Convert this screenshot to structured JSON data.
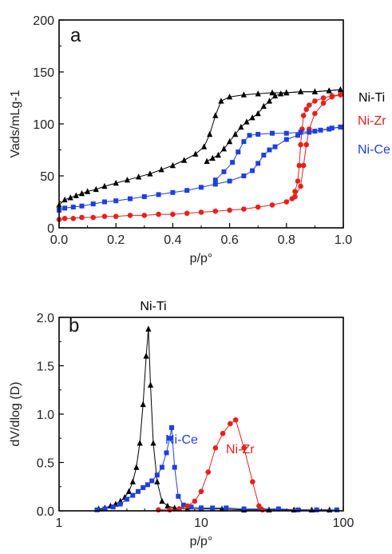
{
  "chart_data": [
    {
      "panel": "a",
      "type": "line",
      "xlabel": "p/p°",
      "ylabel": "Vads/mLg-1",
      "xlim": [
        0,
        1.0
      ],
      "ylim": [
        0,
        200
      ],
      "x_ticks": [
        "0.0",
        "0.2",
        "0.4",
        "0.6",
        "0.8",
        "1.0"
      ],
      "y_ticks": [
        "0",
        "50",
        "100",
        "150",
        "200"
      ],
      "series": [
        {
          "name": "Ni-Ti",
          "color": "#000000",
          "marker": "triangle",
          "adsorption": [
            [
              0.0,
              22
            ],
            [
              0.02,
              27
            ],
            [
              0.04,
              29
            ],
            [
              0.06,
              31
            ],
            [
              0.08,
              33
            ],
            [
              0.1,
              35
            ],
            [
              0.13,
              37
            ],
            [
              0.16,
              40
            ],
            [
              0.2,
              43
            ],
            [
              0.24,
              46
            ],
            [
              0.28,
              49
            ],
            [
              0.32,
              52
            ],
            [
              0.36,
              56
            ],
            [
              0.4,
              60
            ],
            [
              0.44,
              65
            ],
            [
              0.48,
              71
            ],
            [
              0.51,
              78
            ],
            [
              0.53,
              90
            ],
            [
              0.55,
              108
            ],
            [
              0.57,
              122
            ],
            [
              0.6,
              126
            ],
            [
              0.65,
              128
            ],
            [
              0.7,
              129
            ],
            [
              0.75,
              130
            ],
            [
              0.8,
              130
            ],
            [
              0.85,
              131
            ],
            [
              0.9,
              131
            ],
            [
              0.95,
              132
            ],
            [
              0.99,
              133
            ]
          ],
          "desorption": [
            [
              0.99,
              133
            ],
            [
              0.95,
              132
            ],
            [
              0.9,
              131
            ],
            [
              0.85,
              131
            ],
            [
              0.8,
              130
            ],
            [
              0.78,
              129
            ],
            [
              0.76,
              127
            ],
            [
              0.74,
              122
            ],
            [
              0.72,
              117
            ],
            [
              0.7,
              110
            ],
            [
              0.68,
              106
            ],
            [
              0.66,
              102
            ],
            [
              0.64,
              97
            ],
            [
              0.62,
              90
            ],
            [
              0.6,
              83
            ],
            [
              0.58,
              76
            ],
            [
              0.56,
              70
            ],
            [
              0.54,
              67
            ],
            [
              0.52,
              64
            ]
          ]
        },
        {
          "name": "Ni-Zr",
          "color": "#e8201c",
          "marker": "circle",
          "adsorption": [
            [
              0.0,
              8
            ],
            [
              0.02,
              9
            ],
            [
              0.05,
              9
            ],
            [
              0.08,
              10
            ],
            [
              0.12,
              10
            ],
            [
              0.16,
              11
            ],
            [
              0.2,
              11
            ],
            [
              0.25,
              12
            ],
            [
              0.3,
              12
            ],
            [
              0.35,
              13
            ],
            [
              0.4,
              13
            ],
            [
              0.45,
              14
            ],
            [
              0.5,
              15
            ],
            [
              0.55,
              16
            ],
            [
              0.6,
              17
            ],
            [
              0.65,
              18
            ],
            [
              0.7,
              20
            ],
            [
              0.75,
              22
            ],
            [
              0.8,
              25
            ],
            [
              0.83,
              30
            ],
            [
              0.85,
              40
            ],
            [
              0.86,
              60
            ],
            [
              0.87,
              80
            ],
            [
              0.88,
              95
            ],
            [
              0.9,
              110
            ],
            [
              0.93,
              120
            ],
            [
              0.96,
              126
            ],
            [
              0.99,
              128
            ]
          ],
          "desorption": [
            [
              0.99,
              128
            ],
            [
              0.96,
              127
            ],
            [
              0.93,
              125
            ],
            [
              0.9,
              122
            ],
            [
              0.88,
              118
            ],
            [
              0.87,
              114
            ],
            [
              0.86,
              108
            ],
            [
              0.855,
              95
            ],
            [
              0.85,
              80
            ],
            [
              0.845,
              60
            ],
            [
              0.84,
              45
            ],
            [
              0.83,
              35
            ],
            [
              0.82,
              28
            ]
          ]
        },
        {
          "name": "Ni-Ce",
          "color": "#1f3fe0",
          "marker": "square",
          "adsorption": [
            [
              0.0,
              17
            ],
            [
              0.02,
              19
            ],
            [
              0.05,
              20
            ],
            [
              0.08,
              21
            ],
            [
              0.12,
              23
            ],
            [
              0.16,
              25
            ],
            [
              0.2,
              26
            ],
            [
              0.25,
              28
            ],
            [
              0.3,
              30
            ],
            [
              0.35,
              32
            ],
            [
              0.4,
              34
            ],
            [
              0.45,
              36
            ],
            [
              0.5,
              39
            ],
            [
              0.55,
              42
            ],
            [
              0.6,
              45
            ],
            [
              0.65,
              50
            ],
            [
              0.68,
              55
            ],
            [
              0.7,
              62
            ],
            [
              0.72,
              70
            ],
            [
              0.74,
              75
            ],
            [
              0.76,
              78
            ],
            [
              0.8,
              85
            ],
            [
              0.84,
              89
            ],
            [
              0.88,
              92
            ],
            [
              0.92,
              94
            ],
            [
              0.96,
              96
            ],
            [
              0.99,
              97
            ]
          ],
          "desorption": [
            [
              0.99,
              97
            ],
            [
              0.95,
              95
            ],
            [
              0.9,
              93
            ],
            [
              0.85,
              92
            ],
            [
              0.8,
              91
            ],
            [
              0.75,
              91
            ],
            [
              0.7,
              90
            ],
            [
              0.67,
              89
            ],
            [
              0.65,
              83
            ],
            [
              0.63,
              73
            ],
            [
              0.61,
              63
            ],
            [
              0.58,
              54
            ],
            [
              0.55,
              46
            ]
          ]
        }
      ]
    },
    {
      "panel": "b",
      "type": "line",
      "xlabel": "p/p°",
      "ylabel": "dV/dlog (D)",
      "xscale": "log",
      "xlim": [
        1,
        100
      ],
      "ylim": [
        0,
        2.0
      ],
      "x_ticks": [
        "1",
        "10",
        "100"
      ],
      "y_ticks": [
        "0.0",
        "0.5",
        "1.0",
        "1.5",
        "2.0"
      ],
      "series": [
        {
          "name": "Ni-Ti",
          "color": "#000000",
          "marker": "triangle",
          "points": [
            [
              1.9,
              0.02
            ],
            [
              2.1,
              0.03
            ],
            [
              2.3,
              0.05
            ],
            [
              2.5,
              0.07
            ],
            [
              2.7,
              0.1
            ],
            [
              2.9,
              0.14
            ],
            [
              3.1,
              0.2
            ],
            [
              3.3,
              0.3
            ],
            [
              3.5,
              0.45
            ],
            [
              3.7,
              0.7
            ],
            [
              3.9,
              1.1
            ],
            [
              4.1,
              1.6
            ],
            [
              4.25,
              1.88
            ],
            [
              4.4,
              1.3
            ],
            [
              4.6,
              0.7
            ],
            [
              4.9,
              0.3
            ],
            [
              5.3,
              0.1
            ],
            [
              5.8,
              0.05
            ],
            [
              6.5,
              0.03
            ],
            [
              8,
              0.02
            ],
            [
              10,
              0.02
            ],
            [
              14,
              0.02
            ],
            [
              20,
              0.01
            ],
            [
              30,
              0.01
            ],
            [
              45,
              0.01
            ],
            [
              60,
              0.01
            ],
            [
              80,
              0.01
            ]
          ]
        },
        {
          "name": "Ni-Ce",
          "color": "#1f3fe0",
          "marker": "square",
          "points": [
            [
              1.85,
              0.01
            ],
            [
              2.1,
              0.02
            ],
            [
              2.4,
              0.04
            ],
            [
              2.7,
              0.07
            ],
            [
              3.0,
              0.12
            ],
            [
              3.3,
              0.16
            ],
            [
              3.6,
              0.2
            ],
            [
              3.9,
              0.24
            ],
            [
              4.2,
              0.27
            ],
            [
              4.5,
              0.31
            ],
            [
              4.9,
              0.37
            ],
            [
              5.3,
              0.45
            ],
            [
              5.7,
              0.6
            ],
            [
              6.0,
              0.75
            ],
            [
              6.2,
              0.86
            ],
            [
              6.5,
              0.45
            ],
            [
              6.9,
              0.15
            ],
            [
              7.5,
              0.06
            ],
            [
              8.5,
              0.04
            ],
            [
              10,
              0.03
            ],
            [
              12,
              0.03
            ],
            [
              15,
              0.03
            ],
            [
              20,
              0.02
            ],
            [
              26,
              0.02
            ],
            [
              35,
              0.02
            ],
            [
              48,
              0.01
            ],
            [
              65,
              0.01
            ],
            [
              90,
              0.01
            ]
          ]
        },
        {
          "name": "Ni-Zr",
          "color": "#e8201c",
          "marker": "circle",
          "points": [
            [
              5.0,
              0.01
            ],
            [
              6.0,
              0.01
            ],
            [
              7.0,
              0.02
            ],
            [
              8.0,
              0.05
            ],
            [
              9.0,
              0.1
            ],
            [
              10.0,
              0.2
            ],
            [
              11.2,
              0.4
            ],
            [
              12.6,
              0.65
            ],
            [
              14.2,
              0.8
            ],
            [
              16.0,
              0.9
            ],
            [
              17.5,
              0.94
            ],
            [
              20.0,
              0.65
            ],
            [
              23.0,
              0.3
            ],
            [
              25.5,
              0.05
            ],
            [
              27,
              0.01
            ]
          ]
        }
      ]
    }
  ]
}
